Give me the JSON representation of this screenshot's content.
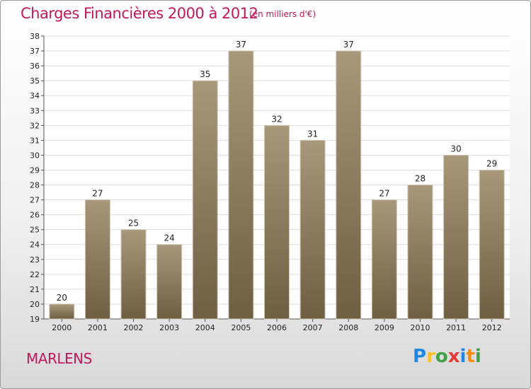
{
  "title": "Charges Financières 2000 à 2012",
  "subtitle": "(en milliers d'€)",
  "town": "MARLENS",
  "logo": {
    "letters": [
      "P",
      "r",
      "o",
      "x",
      "i",
      "t",
      "i"
    ],
    "colors": [
      "#1e88e5",
      "#fbc02d",
      "#43a047",
      "#e53935",
      "#1e88e5",
      "#fb8c00",
      "#43a047"
    ]
  },
  "colors": {
    "title": "#c2185b",
    "bar_top": "#a8987a",
    "bar_bottom": "#6f5f42",
    "grid": "#dddddd"
  },
  "chart_data": {
    "type": "bar",
    "categories": [
      "2000",
      "2001",
      "2002",
      "2003",
      "2004",
      "2005",
      "2006",
      "2007",
      "2008",
      "2009",
      "2010",
      "2011",
      "2012"
    ],
    "values": [
      20,
      27,
      25,
      24,
      35,
      37,
      32,
      31,
      37,
      27,
      28,
      30,
      29
    ],
    "ylim": [
      19,
      38
    ],
    "yticks": [
      19,
      20,
      21,
      22,
      23,
      24,
      25,
      26,
      27,
      28,
      29,
      30,
      31,
      32,
      33,
      34,
      35,
      36,
      37,
      38
    ],
    "grid": true,
    "legend": "none"
  }
}
